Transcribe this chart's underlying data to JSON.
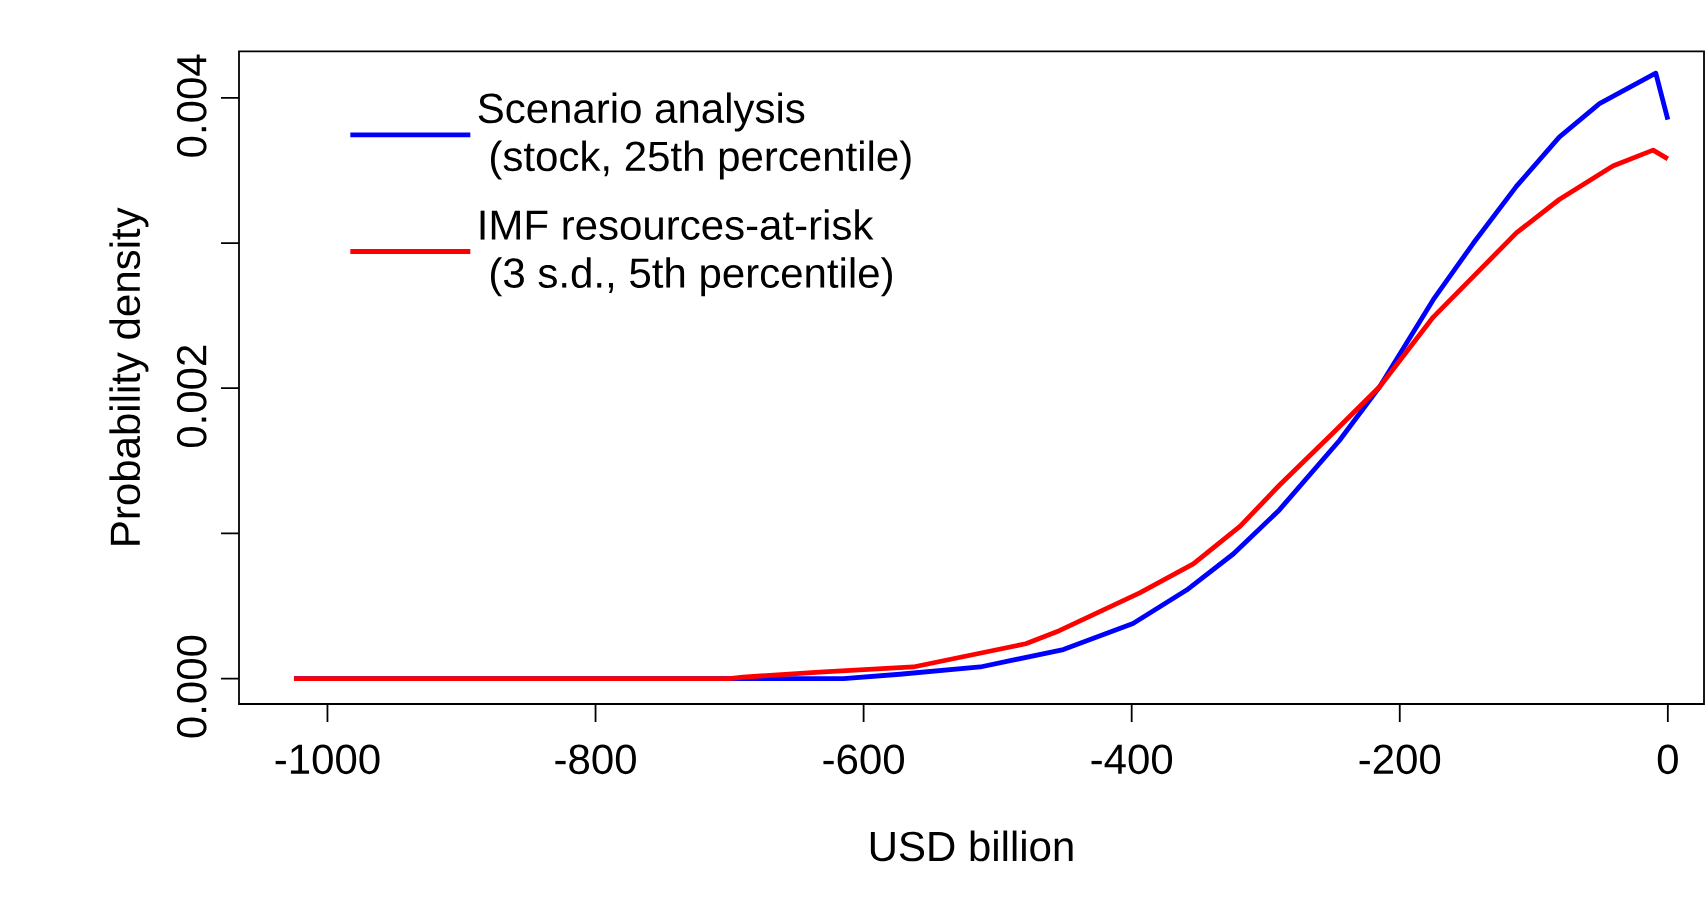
{
  "chart_data": {
    "type": "line",
    "xlabel": "USD billion",
    "ylabel": "Probability density",
    "x": [
      -1025,
      -700,
      -650,
      -615,
      -573,
      -513,
      -451,
      -399,
      -359,
      -324,
      -290,
      -245,
      -215,
      -175,
      -145,
      -113,
      -81,
      -51,
      -9,
      0
    ],
    "series": [
      {
        "name": "Scenario analysis\n (stock, 25th percentile)",
        "color": "#0000ff",
        "values": [
          0,
          0,
          0,
          0,
          3e-05,
          8e-05,
          0.0002,
          0.00038,
          0.00061,
          0.00086,
          0.00116,
          0.00164,
          0.00201,
          0.00261,
          0.003,
          0.00339,
          0.00373,
          0.00396,
          0.00417,
          0.00385
        ]
      },
      {
        "name": "IMF resources-at-risk\n (3 s.d., 5th percentile)",
        "color": "#ff0000",
        "x": [
          -1025,
          -700,
          -690,
          -633,
          -563,
          -479,
          -454,
          -394,
          -354,
          -319,
          -290,
          -250,
          -215,
          -175,
          -145,
          -113,
          -81,
          -41,
          -11,
          0
        ],
        "values": [
          0,
          0,
          1e-05,
          4.5e-05,
          8e-05,
          0.00024,
          0.00033,
          0.00059,
          0.00079,
          0.00105,
          0.00133,
          0.00169,
          0.00201,
          0.00249,
          0.00277,
          0.00307,
          0.0033,
          0.00353,
          0.00364,
          0.00358
        ]
      }
    ],
    "xlim": [
      -1066,
      27
    ],
    "ylim": [
      -0.000175,
      0.00432
    ],
    "xticks": [
      -1000,
      -800,
      -600,
      -400,
      -200,
      0
    ],
    "yticks": [
      {
        "value": 0,
        "label": "0.000"
      },
      {
        "value": 0.001,
        "label": null
      },
      {
        "value": 0.002,
        "label": "0.002"
      },
      {
        "value": 0.003,
        "label": null
      },
      {
        "value": 0.004,
        "label": "0.004"
      }
    ],
    "grid": false,
    "legend": "top left",
    "marker": "none",
    "line_style": "solid"
  }
}
